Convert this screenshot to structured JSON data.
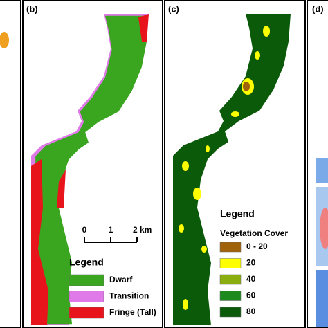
{
  "panel_b": {
    "label": "(b)",
    "scale_bar": {
      "ticks": [
        "0",
        "1",
        "2 km"
      ]
    },
    "legend": {
      "title": "Legend",
      "items": [
        {
          "name": "Dwarf",
          "color": "#3aa620"
        },
        {
          "name": "Transition",
          "color": "#e07ae8"
        },
        {
          "name": "Fringe (Tall)",
          "color": "#e8141c"
        }
      ]
    }
  },
  "panel_c": {
    "label": "(c)",
    "legend": {
      "title": "Legend",
      "subtitle": "Vegetation Cover",
      "items": [
        {
          "name": "0 - 20",
          "color": "#a0620a"
        },
        {
          "name": "20",
          "color": "#ffff00"
        },
        {
          "name": "40",
          "color": "#8aae10"
        },
        {
          "name": "60",
          "color": "#1e8a1e"
        },
        {
          "name": "80",
          "color": "#0a5a0a"
        }
      ]
    }
  },
  "panel_d": {
    "label": "(d)"
  }
}
